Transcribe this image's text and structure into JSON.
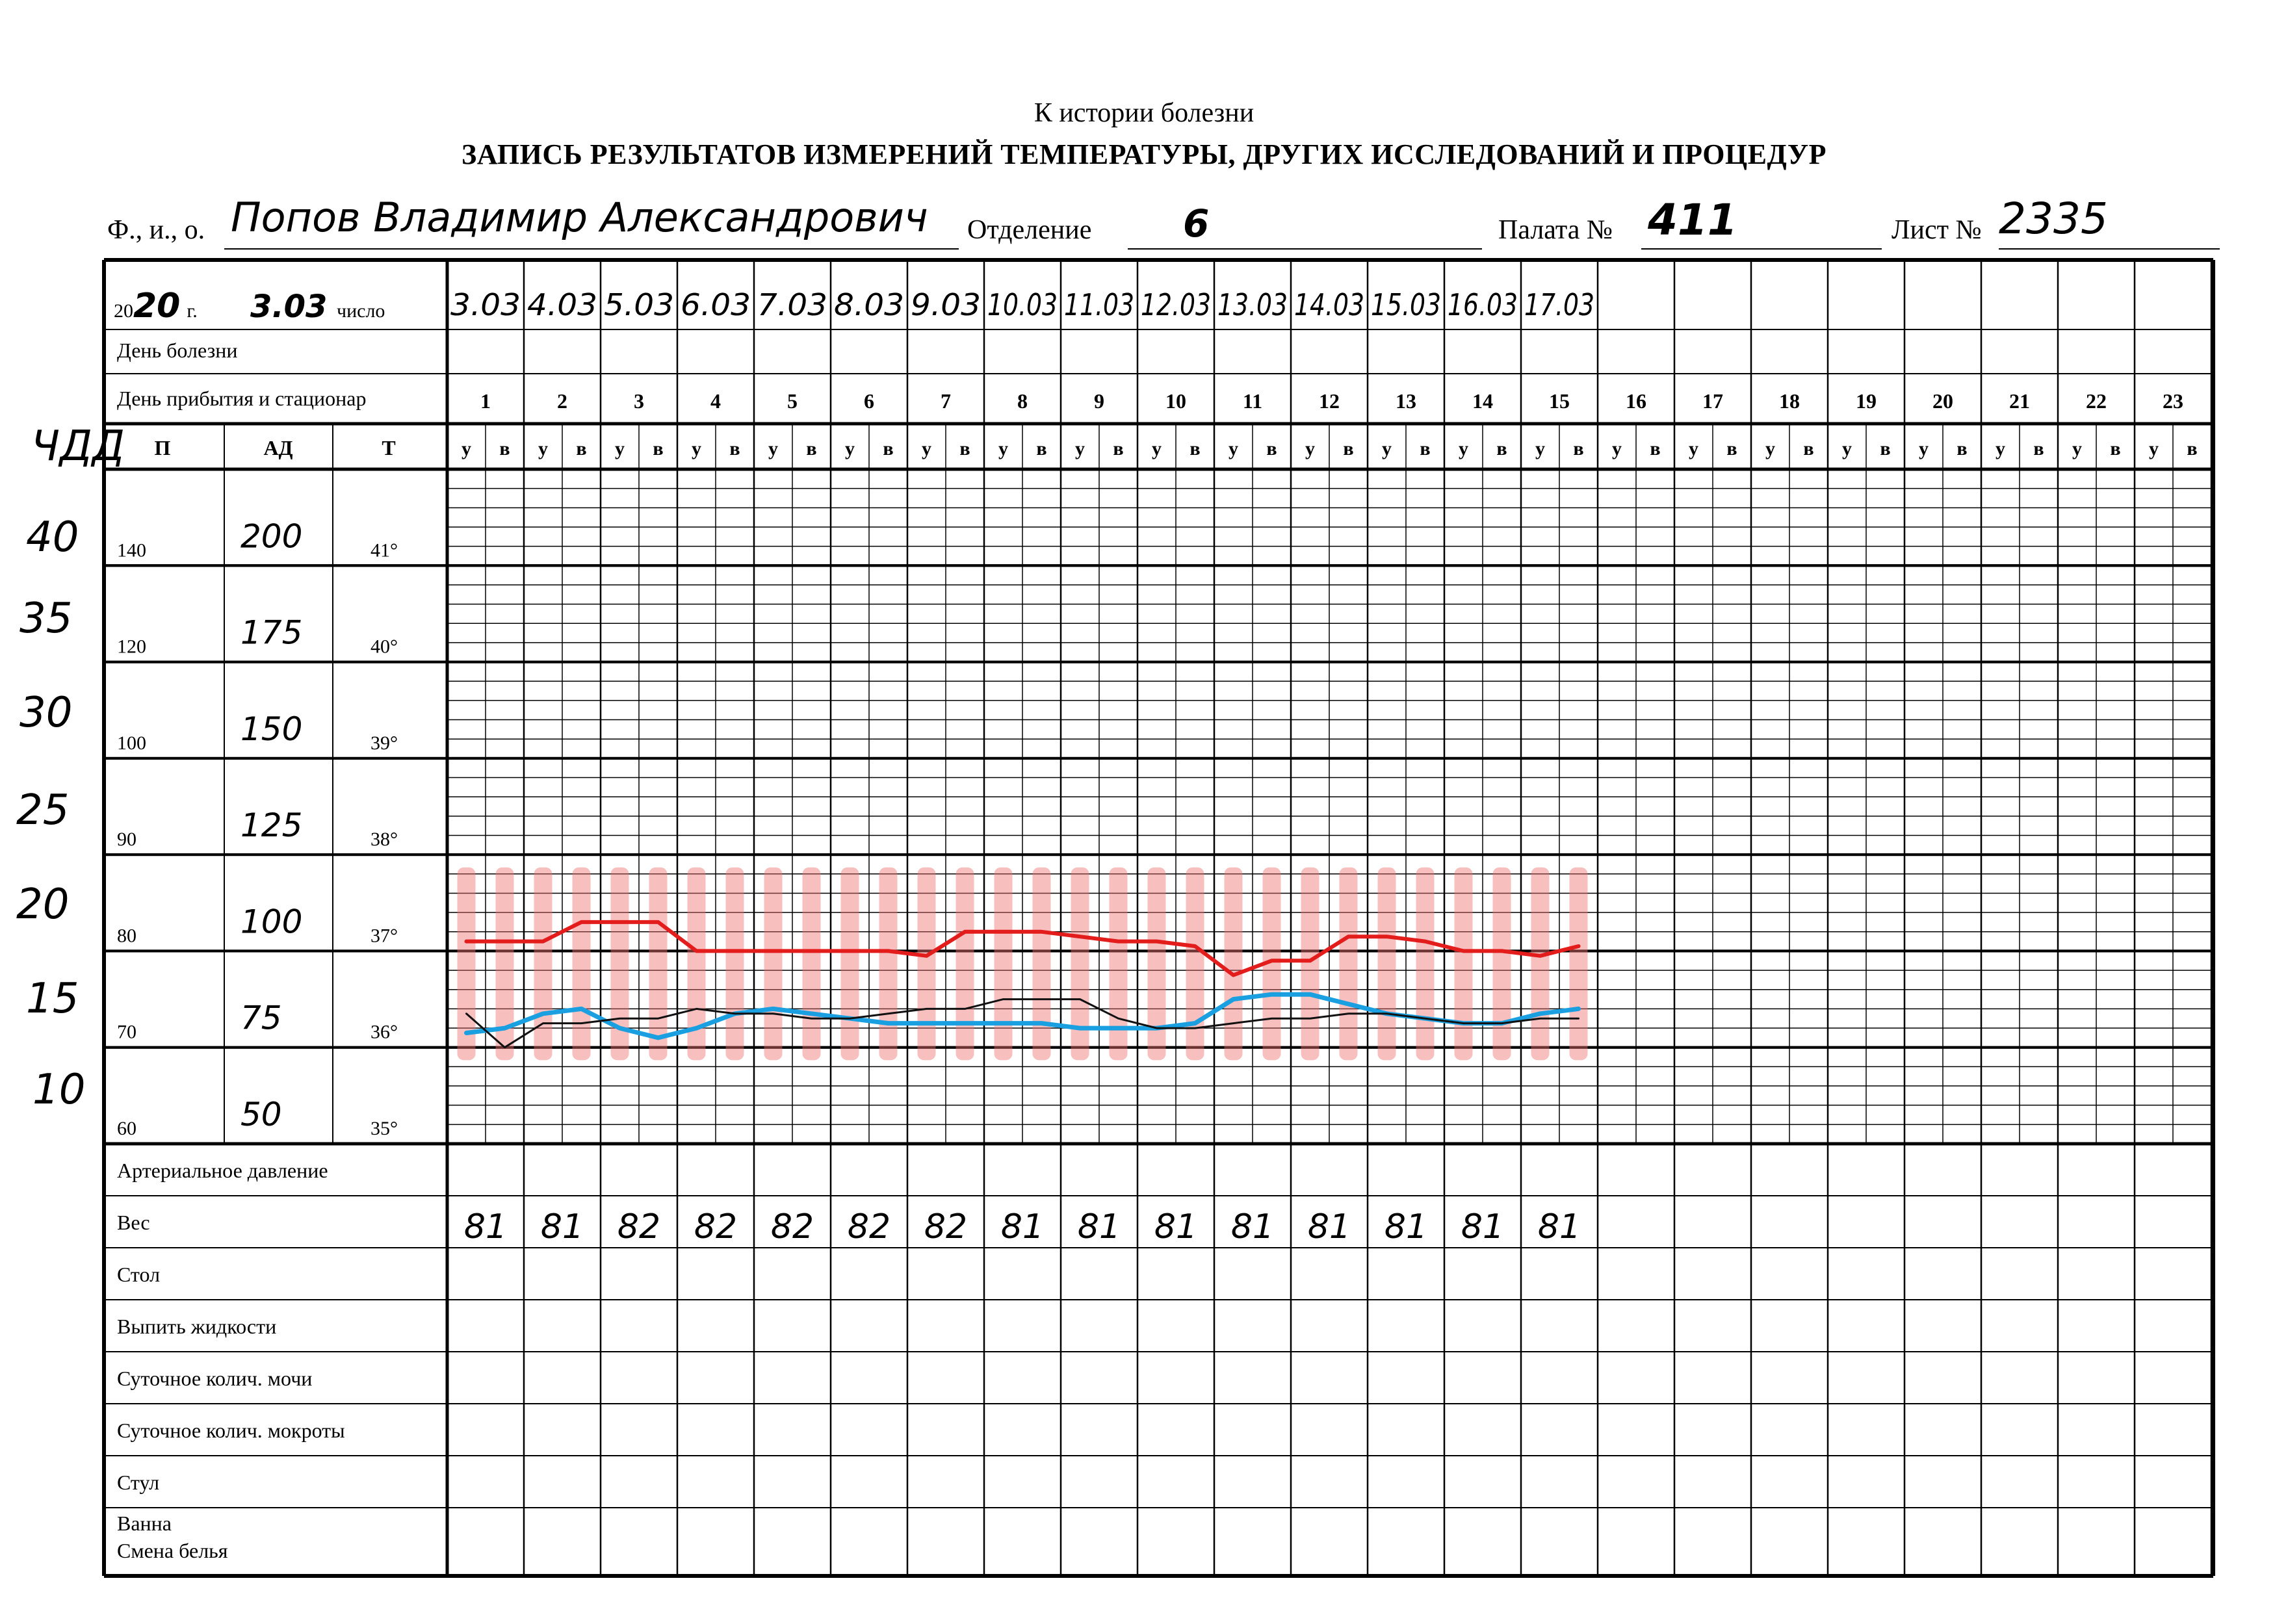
{
  "header": {
    "top": "К истории болезни",
    "title": "ЗАПИСЬ РЕЗУЛЬТАТОВ ИЗМЕРЕНИЙ ТЕМПЕРАТУРЫ, ДРУГИХ ИССЛЕДОВАНИЙ И ПРОЦЕДУР"
  },
  "patient": {
    "name_label": "Ф., и., о.",
    "name_value": "Попов Владимир Александрович",
    "department_label": "Отделение",
    "department_value": "6",
    "ward_label": "Палата №",
    "ward_value": "411",
    "sheet_label": "Лист №",
    "sheet_value": "2335"
  },
  "form": {
    "year_prefix": "20",
    "year_value": "20",
    "year_suffix": "г.",
    "start_date": "3.03",
    "date_label": "число",
    "day_of_illness": "День болезни",
    "arrival_day": "День прибытия и стационар",
    "col_p": "П",
    "col_ad": "АД",
    "col_t": "Т",
    "morning": "у",
    "evening": "в",
    "day_numbers": [
      "1",
      "2",
      "3",
      "4",
      "5",
      "6",
      "7",
      "8",
      "9",
      "10",
      "11",
      "12",
      "13",
      "14",
      "15",
      "16",
      "17",
      "18",
      "19",
      "20",
      "21",
      "22",
      "23"
    ],
    "dates": [
      "3.03",
      "4.03",
      "5.03",
      "6.03",
      "7.03",
      "8.03",
      "9.03",
      "10.03",
      "11.03",
      "12.03",
      "13.03",
      "14.03",
      "15.03",
      "16.03",
      "17.03"
    ],
    "scale_p": [
      "140",
      "120",
      "100",
      "90",
      "80",
      "70",
      "60"
    ],
    "scale_ad": [
      "200",
      "175",
      "150",
      "125",
      "100",
      "75",
      "50"
    ],
    "scale_t": [
      "41°",
      "40°",
      "39°",
      "38°",
      "37°",
      "36°",
      "35°"
    ],
    "margin_notes": [
      "ЧДД",
      "40",
      "35",
      "30",
      "25",
      "20",
      "15",
      "10"
    ]
  },
  "bottom_rows": {
    "labels": [
      "Артериальное давление",
      "Вес",
      "Стол",
      "Выпить жидкости",
      "Суточное колич. мочи",
      "Суточное колич. мокроты",
      "Стул",
      "Ванна",
      "Смена белья"
    ],
    "weights": [
      "81",
      "81",
      "82",
      "82",
      "82",
      "82",
      "82",
      "81",
      "81",
      "81",
      "81",
      "81",
      "81",
      "81",
      "81"
    ]
  },
  "chart_data": {
    "type": "line",
    "x": [
      "3.03 у",
      "3.03 в",
      "4.03 у",
      "4.03 в",
      "5.03 у",
      "5.03 в",
      "6.03 у",
      "6.03 в",
      "7.03 у",
      "7.03 в",
      "8.03 у",
      "8.03 в",
      "9.03 у",
      "9.03 в",
      "10.03 у",
      "10.03 в",
      "11.03 у",
      "11.03 в",
      "12.03 у",
      "12.03 в",
      "13.03 у",
      "13.03 в",
      "14.03 у",
      "14.03 в",
      "15.03 у",
      "15.03 в",
      "16.03 у",
      "16.03 в",
      "17.03 у",
      "17.03 в"
    ],
    "series": [
      {
        "color": "#e31c1c",
        "scale": "Т",
        "values": [
          37.1,
          37.1,
          37.1,
          37.3,
          37.3,
          37.3,
          37.0,
          37.0,
          37.0,
          37.0,
          37.0,
          37.0,
          36.95,
          37.2,
          37.2,
          37.2,
          37.15,
          37.1,
          37.1,
          37.05,
          36.75,
          36.9,
          36.9,
          37.15,
          37.15,
          37.1,
          37.0,
          37.0,
          36.95,
          37.05
        ]
      },
      {
        "color": "#1aa0e0",
        "scale": "Т",
        "values": [
          36.15,
          36.2,
          36.35,
          36.4,
          36.2,
          36.1,
          36.2,
          36.35,
          36.4,
          36.35,
          36.3,
          36.25,
          36.25,
          36.25,
          36.25,
          36.25,
          36.2,
          36.2,
          36.2,
          36.25,
          36.5,
          36.55,
          36.55,
          36.45,
          36.35,
          36.3,
          36.25,
          36.25,
          36.35,
          36.4
        ]
      },
      {
        "color": "#111111",
        "scale": "Т",
        "values": [
          36.35,
          36.0,
          36.25,
          36.25,
          36.3,
          36.3,
          36.4,
          36.35,
          36.35,
          36.3,
          36.3,
          36.35,
          36.4,
          36.4,
          36.5,
          36.5,
          36.5,
          36.3,
          36.2,
          36.2,
          36.25,
          36.3,
          36.3,
          36.35,
          36.35,
          36.3,
          36.25,
          36.25,
          36.3,
          36.3
        ]
      },
      {
        "color": "#f07070",
        "scale": "ЧДД",
        "values": [
          24,
          24,
          24,
          24,
          24,
          24,
          24,
          24,
          24,
          24,
          24,
          24,
          24,
          24,
          24,
          24,
          24,
          24,
          24,
          24,
          24,
          24,
          24,
          24,
          24,
          24,
          24,
          24,
          24,
          24
        ]
      }
    ]
  }
}
